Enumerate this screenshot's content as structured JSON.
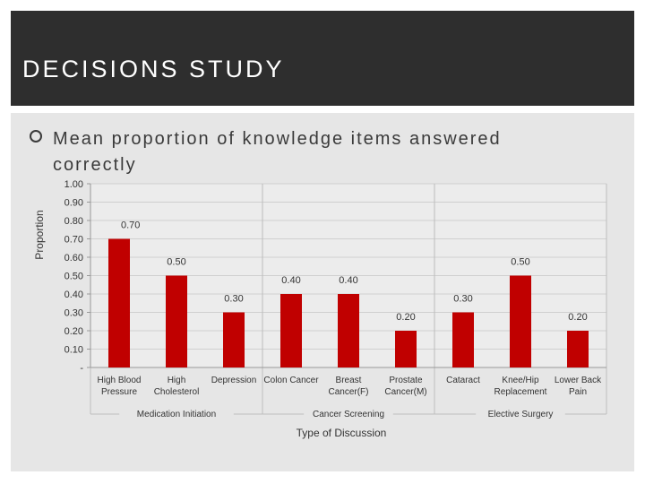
{
  "slide": {
    "title": "DECISIONS STUDY",
    "bullet": "Mean proportion of knowledge items answered correctly"
  },
  "colors": {
    "header_bg": "#2e2e2e",
    "content_bg": "#e6e6e6",
    "bar": "#c00000",
    "grid": "#cfcfcf"
  },
  "chart_data": {
    "type": "bar",
    "ylabel": "Proportion",
    "xlabel": "Type of Discussion",
    "ylim": [
      0,
      1
    ],
    "y_ticks": [
      "-",
      "0.10",
      "0.20",
      "0.30",
      "0.40",
      "0.50",
      "0.60",
      "0.70",
      "0.80",
      "0.90",
      "1.00"
    ],
    "grid": true,
    "categories": [
      {
        "lines": [
          "High Blood",
          "Pressure"
        ],
        "value": 0.7,
        "value_label": "0.70"
      },
      {
        "lines": [
          "High",
          "Cholesterol"
        ],
        "value": 0.5,
        "value_label": "0.50"
      },
      {
        "lines": [
          "Depression"
        ],
        "value": 0.3,
        "value_label": "0.30"
      },
      {
        "lines": [
          "Colon Cancer"
        ],
        "value": 0.4,
        "value_label": "0.40"
      },
      {
        "lines": [
          "Breast",
          "Cancer(F)"
        ],
        "value": 0.4,
        "value_label": "0.40"
      },
      {
        "lines": [
          "Prostate",
          "Cancer(M)"
        ],
        "value": 0.2,
        "value_label": "0.20"
      },
      {
        "lines": [
          "Cataract"
        ],
        "value": 0.3,
        "value_label": "0.30"
      },
      {
        "lines": [
          "Knee/Hip",
          "Replacement"
        ],
        "value": 0.5,
        "value_label": "0.50"
      },
      {
        "lines": [
          "Lower Back",
          "Pain"
        ],
        "value": 0.2,
        "value_label": "0.20"
      }
    ],
    "groups": [
      {
        "label": "Medication Initiation",
        "count": 3
      },
      {
        "label": "Cancer Screening",
        "count": 3
      },
      {
        "label": "Elective Surgery",
        "count": 3
      }
    ]
  }
}
